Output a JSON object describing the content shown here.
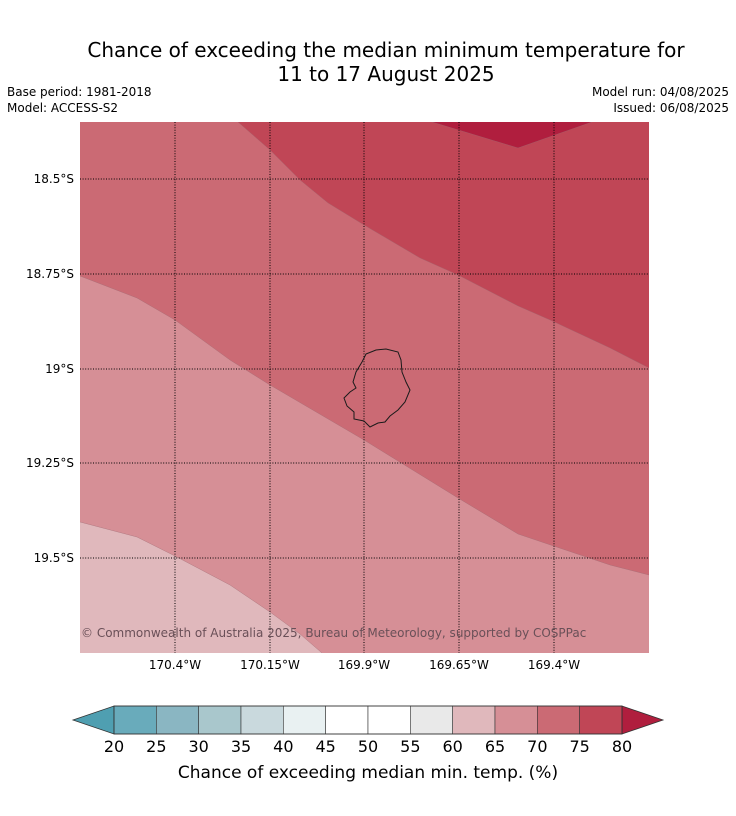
{
  "header": {
    "title_line1": "Chance of exceeding the median minimum temperature for",
    "title_line2": "11 to 17 August 2025",
    "base_period": "Base period: 1981-2018",
    "model": "Model: ACCESS-S2",
    "model_run": "Model run: 04/08/2025",
    "issued": "Issued: 06/08/2025"
  },
  "map": {
    "copyright": "© Commonwealth of Australia 2025, Bureau of Meteorology, supported by COSPPac",
    "lat_labels": [
      "18.5°S",
      "18.75°S",
      "19°S",
      "19.25°S",
      "19.5°S"
    ],
    "lon_labels": [
      "170.4°W",
      "170.15°W",
      "169.9°W",
      "169.65°W",
      "169.4°W"
    ],
    "band_colors": {
      "60_65": "#e0b8bc",
      "65_70": "#d68f96",
      "70_75": "#cb6a74",
      "75_80": "#c04656",
      "80_plus": "#b01e3e"
    }
  },
  "colorbar": {
    "title": "Chance of exceeding median min. temp. (%)",
    "ticks": [
      "20",
      "25",
      "30",
      "35",
      "40",
      "45",
      "50",
      "55",
      "60",
      "65",
      "70",
      "75",
      "80"
    ],
    "colors": [
      "#69abbb",
      "#8ab6c2",
      "#a9c7cc",
      "#c9d9dd",
      "#e9f1f2",
      "#ffffff",
      "#ffffff",
      "#e9e9e9",
      "#e0b8bc",
      "#d68f96",
      "#cb6a74",
      "#c04656"
    ],
    "under_color": "#4f9fb1",
    "over_color": "#b01e3e"
  }
}
